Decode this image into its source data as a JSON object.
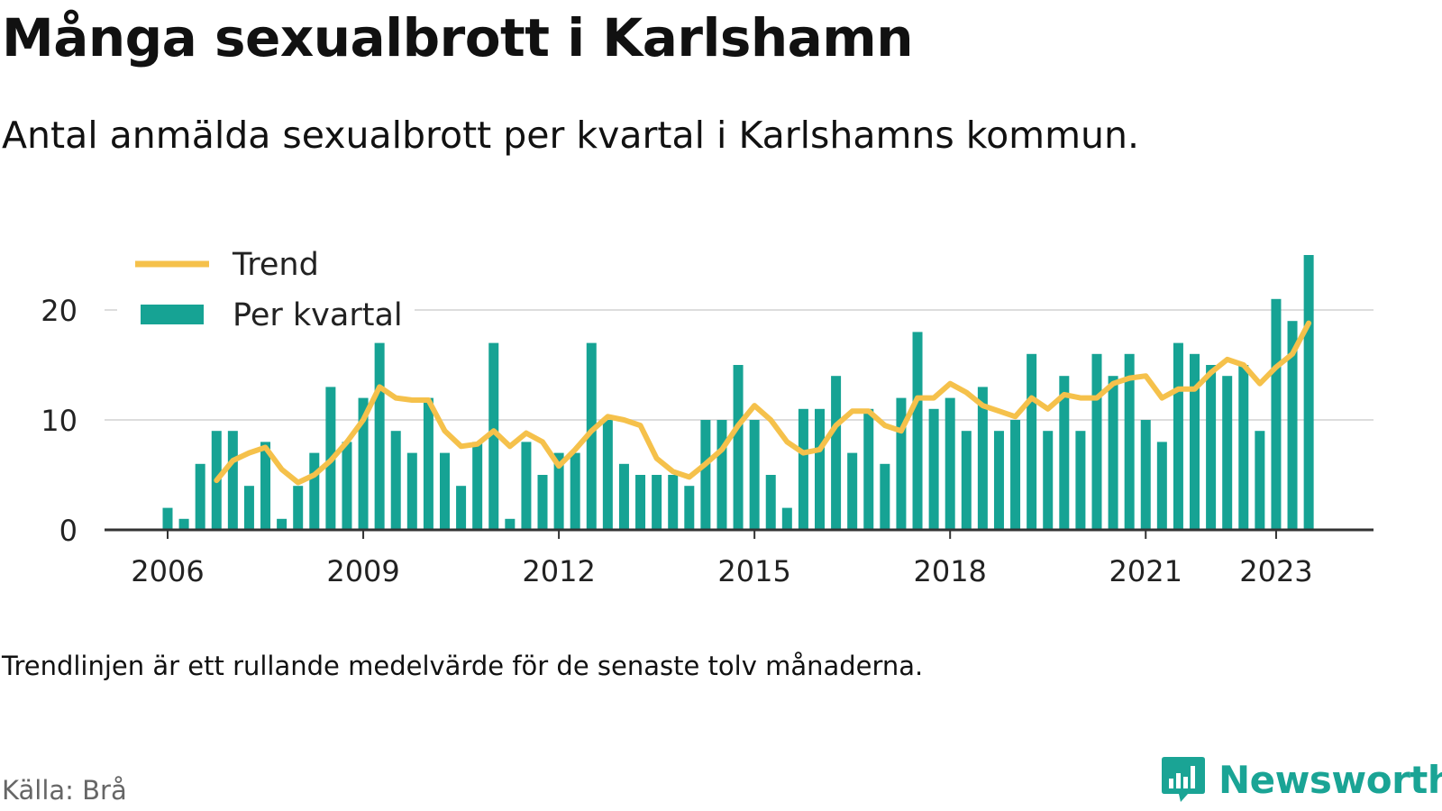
{
  "header": {
    "title": "Många sexualbrott i Karlshamn",
    "subtitle": "Antal anmälda sexualbrott per kvartal i Karlshamns kommun."
  },
  "footer": {
    "note": "Trendlinjen är ett rullande medelvärde för de senaste tolv månaderna.",
    "source": "Källa: Brå",
    "brand": "Newsworthy"
  },
  "colors": {
    "bar": "#16a394",
    "trend": "#f5c14b",
    "grid": "#dddddd",
    "axis": "#333333",
    "text": "#222222"
  },
  "icons": {
    "brand_logo": "bar-chart-speech-bubble-icon"
  },
  "chart_data": {
    "type": "bar",
    "title": "Många sexualbrott i Karlshamn",
    "subtitle": "Antal anmälda sexualbrott per kvartal i Karlshamns kommun.",
    "xlabel": "",
    "ylabel": "",
    "ylim": [
      0,
      25
    ],
    "yticks": [
      0,
      10,
      20
    ],
    "x_ticks": [
      {
        "label": "2006",
        "t": 2006.0
      },
      {
        "label": "2009",
        "t": 2009.0
      },
      {
        "label": "2012",
        "t": 2012.0
      },
      {
        "label": "2015",
        "t": 2015.0
      },
      {
        "label": "2018",
        "t": 2018.0
      },
      {
        "label": "2021",
        "t": 2021.0
      },
      {
        "label": "2023",
        "t": 2023.0
      }
    ],
    "grid": true,
    "legend": {
      "position": "top-left",
      "entries": [
        "Trend",
        "Per kvartal"
      ]
    },
    "x_start": "2006-Q1",
    "series": [
      {
        "name": "Per kvartal",
        "type": "bar",
        "values": [
          2,
          1,
          6,
          9,
          9,
          4,
          8,
          1,
          4,
          7,
          13,
          8,
          12,
          17,
          9,
          7,
          12,
          7,
          4,
          8,
          17,
          1,
          8,
          5,
          7,
          7,
          17,
          10,
          6,
          5,
          5,
          5,
          4,
          10,
          10,
          15,
          10,
          5,
          2,
          11,
          11,
          14,
          7,
          11,
          6,
          12,
          18,
          11,
          12,
          9,
          13,
          9,
          10,
          16,
          9,
          14,
          9,
          16,
          14,
          16,
          10,
          8,
          17,
          16,
          15,
          14,
          15,
          9,
          21,
          19,
          25
        ]
      },
      {
        "name": "Trend",
        "type": "line",
        "values": [
          null,
          null,
          null,
          4.5,
          6.3,
          7.0,
          7.5,
          5.5,
          4.3,
          5.0,
          6.3,
          8.0,
          10.0,
          13.0,
          12.0,
          11.8,
          11.8,
          9.0,
          7.6,
          7.8,
          9.0,
          7.6,
          8.8,
          8.0,
          5.8,
          7.3,
          9.0,
          10.3,
          10.0,
          9.5,
          6.5,
          5.3,
          4.8,
          6.0,
          7.3,
          9.5,
          11.3,
          10.0,
          8.0,
          7.0,
          7.3,
          9.5,
          10.8,
          10.8,
          9.5,
          9.0,
          12.0,
          12.0,
          13.3,
          12.5,
          11.3,
          10.8,
          10.3,
          12.0,
          11.0,
          12.3,
          12.0,
          12.0,
          13.3,
          13.8,
          14.0,
          12.0,
          12.8,
          12.8,
          14.3,
          15.5,
          15.0,
          13.3,
          14.8,
          16.0,
          18.8
        ]
      }
    ]
  }
}
